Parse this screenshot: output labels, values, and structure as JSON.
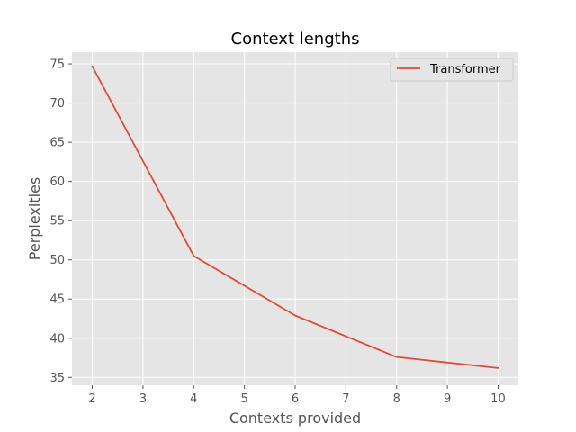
{
  "chart_data": {
    "type": "line",
    "title": "Context lengths",
    "xlabel": "Contexts provided",
    "ylabel": "Perplexities",
    "xlim": [
      1.6,
      10.4
    ],
    "ylim": [
      34.0,
      76.5
    ],
    "xticks": [
      2,
      3,
      4,
      5,
      6,
      7,
      8,
      9,
      10
    ],
    "yticks": [
      35,
      40,
      45,
      50,
      55,
      60,
      65,
      70,
      75
    ],
    "grid": true,
    "legend_position": "top-right",
    "series": [
      {
        "name": "Transformer",
        "color": "#E24A33",
        "x": [
          2,
          4,
          6,
          8,
          10
        ],
        "y": [
          74.7,
          50.5,
          42.9,
          37.6,
          36.2
        ]
      }
    ],
    "background_color": "#E5E5E5",
    "grid_color": "#FFFFFF"
  }
}
